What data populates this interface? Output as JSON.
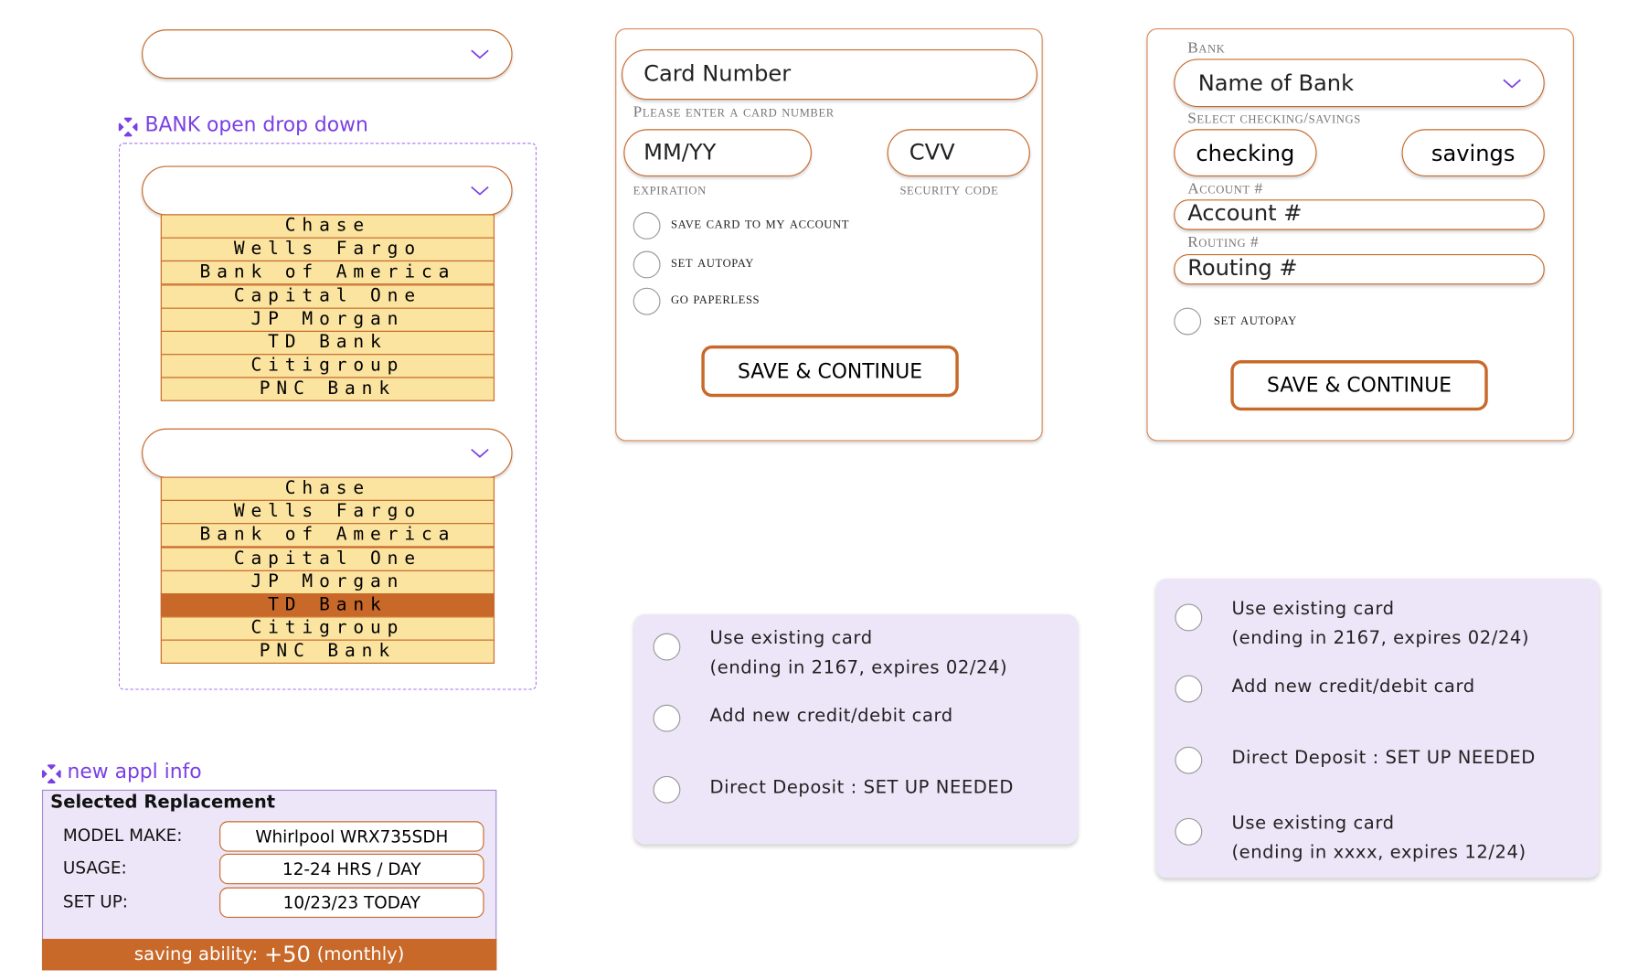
{
  "bank_dropdown": {
    "label": "BANK open drop down",
    "lists": [
      {
        "options": [
          {
            "label": "Chase"
          },
          {
            "label": "Wells Fargo"
          },
          {
            "label": "Bank of America"
          },
          {
            "label": "Capital One"
          },
          {
            "label": "JP Morgan"
          },
          {
            "label": "TD Bank"
          },
          {
            "label": "Citigroup"
          },
          {
            "label": "PNC Bank"
          }
        ]
      },
      {
        "options": [
          {
            "label": "Chase"
          },
          {
            "label": "Wells Fargo"
          },
          {
            "label": "Bank of America"
          },
          {
            "label": "Capital One"
          },
          {
            "label": "JP Morgan"
          },
          {
            "label": "TD Bank",
            "highlighted": true
          },
          {
            "label": "Citigroup"
          },
          {
            "label": "PNC Bank"
          }
        ]
      }
    ]
  },
  "card_form": {
    "card_number_placeholder": "Card Number",
    "card_number_hint": "Please enter a card number",
    "expiry_placeholder": "MM/YY",
    "cvv_placeholder": "CVV",
    "expiry_label": "expiration",
    "cvv_label": "security code",
    "options": [
      "save card to my account",
      "set autopay",
      "go paperless"
    ],
    "button": "SAVE & CONTINUE"
  },
  "bank_form": {
    "bank_label": "Bank",
    "bank_placeholder": "Name of Bank",
    "type_label": "Select checking/savings",
    "types": [
      "checking",
      "savings"
    ],
    "account_label": "Account #",
    "account_placeholder": "Account #",
    "routing_label": "Routing #",
    "routing_placeholder": "Routing #",
    "option": "set autopay",
    "button": "SAVE & CONTINUE"
  },
  "payment_options_1": {
    "items": [
      {
        "lines": [
          "Use existing card",
          "(ending in 2167, expires 02/24)"
        ]
      },
      {
        "lines": [
          "Add  new credit/debit  card"
        ]
      },
      {
        "lines": [
          "Direct Deposit : SET UP NEEDED"
        ]
      }
    ]
  },
  "payment_options_2": {
    "items": [
      {
        "lines": [
          "Use existing card",
          "(ending in 2167, expires 02/24)"
        ]
      },
      {
        "lines": [
          "Add  new credit/debit  card"
        ]
      },
      {
        "lines": [
          "Direct Deposit : SET UP NEEDED"
        ]
      },
      {
        "lines": [
          "Use existing card",
          "(ending in xxxx, expires 12/24)"
        ]
      }
    ]
  },
  "appl_info": {
    "label": "new appl info",
    "heading": "Selected Replacement",
    "rows": [
      [
        "MODEL MAKE:",
        "Whirlpool WRX735SDH"
      ],
      [
        "USAGE:",
        "12-24 HRS / DAY"
      ],
      [
        "SET UP:",
        "10/23/23 TODAY"
      ]
    ],
    "footer": {
      "prefix": "saving ability:",
      "amount": "+50",
      "suffix": "(monthly)"
    }
  }
}
